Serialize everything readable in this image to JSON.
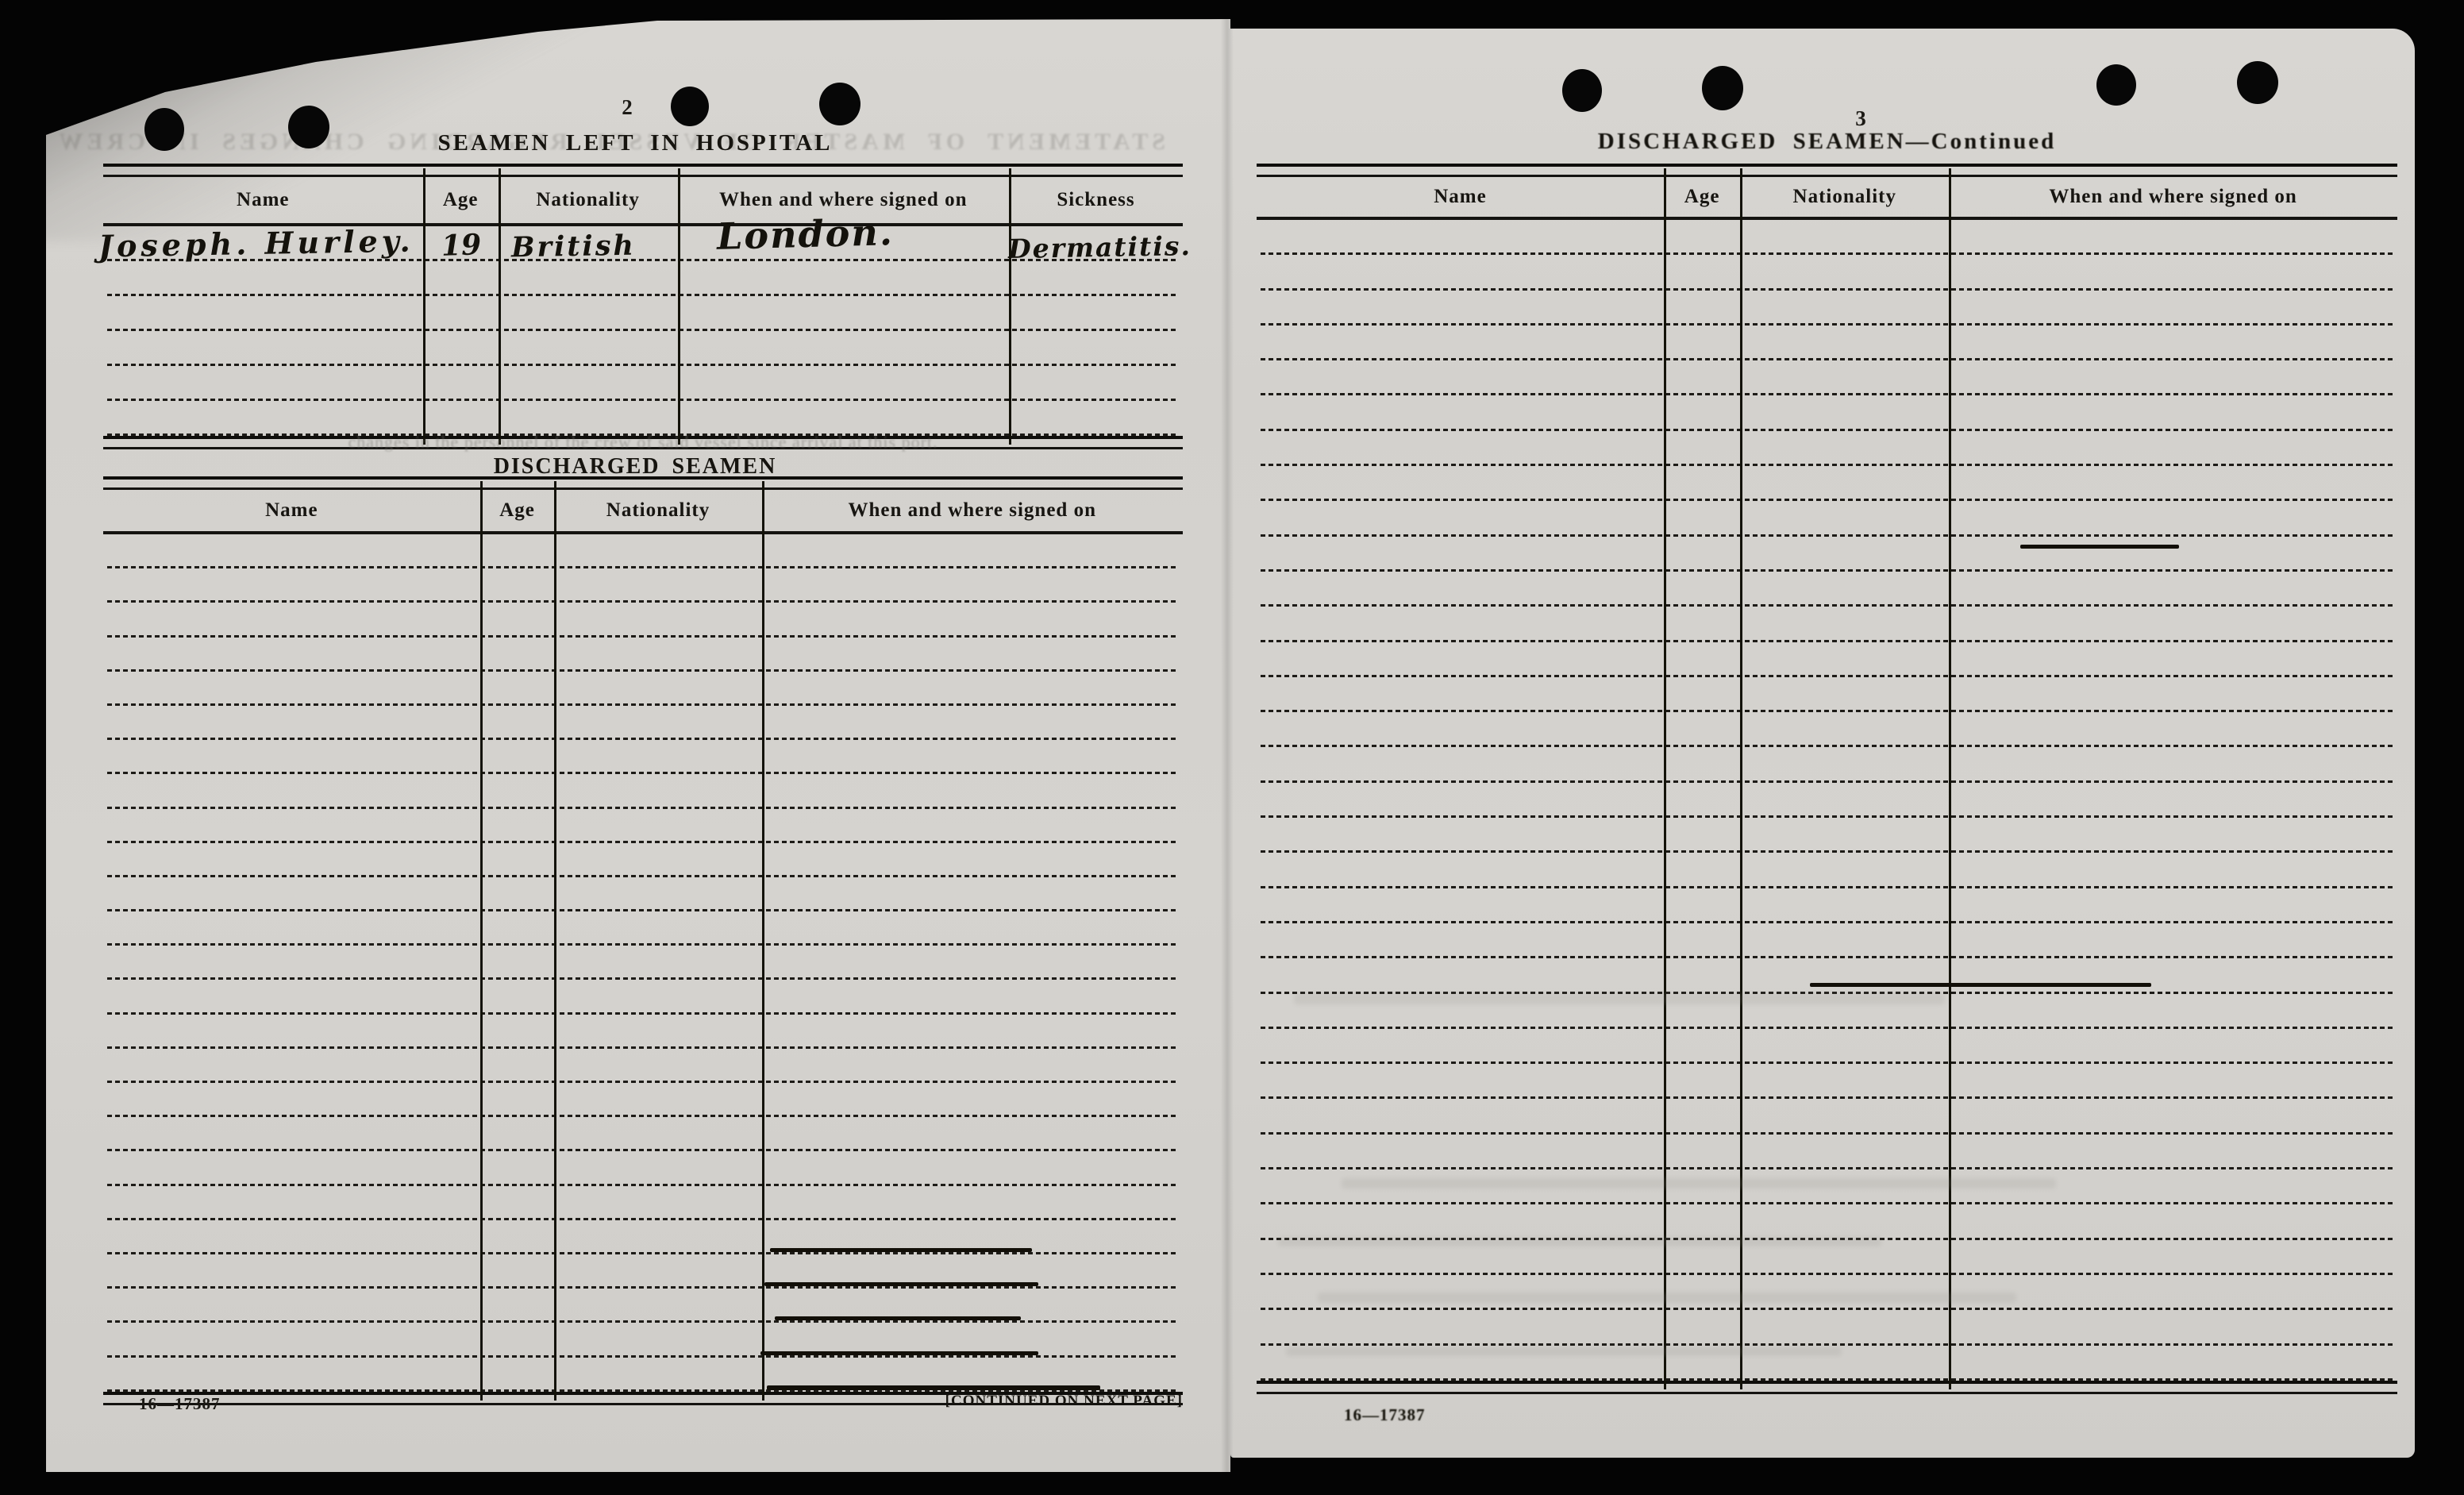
{
  "scan": {
    "background_color": "#000000",
    "paper_color": "#d3d1cd",
    "ink_color": "#141310"
  },
  "left_page": {
    "page_number": "2",
    "bleedthrough_title": "STATEMENT OF MASTER OF VESSEL REGARDING CHANGES IN CREW",
    "bleedthrough_line": "changes in the personnel of the crew of said vessel since arrival at this port.",
    "hospital_section": {
      "title": "SEAMEN LEFT IN HOSPITAL",
      "columns": [
        "Name",
        "Age",
        "Nationality",
        "When and where signed on",
        "Sickness"
      ],
      "row_count": 6,
      "entries": [
        {
          "name": "Joseph. Hurley.",
          "age": "19",
          "nationality": "British",
          "signed_on": "London.",
          "sickness": "Dermatitis."
        }
      ]
    },
    "discharged_section": {
      "title": "DISCHARGED SEAMEN",
      "columns": [
        "Name",
        "Age",
        "Nationality",
        "When and where signed on"
      ],
      "row_count": 25
    },
    "footer": {
      "form_number": "16—17387",
      "continued_note": "[CONTINUED ON NEXT PAGE]"
    }
  },
  "right_page": {
    "page_number": "3",
    "section": {
      "title": "DISCHARGED SEAMEN—Continued",
      "columns": [
        "Name",
        "Age",
        "Nationality",
        "When and where signed on"
      ],
      "row_count": 33
    },
    "footer": {
      "form_number": "16—17387"
    }
  }
}
